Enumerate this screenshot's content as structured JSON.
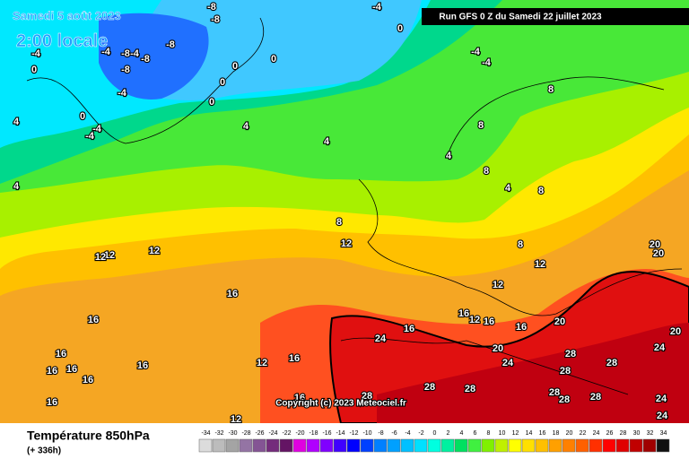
{
  "header": {
    "date": "Samedi 5 août 2023",
    "time": "2:00 locale",
    "run": "Run GFS 0 Z du Samedi 22 juillet 2023"
  },
  "copyright": "Copyright (c) 2023 Meteociel.fr",
  "footer": {
    "title": "Température 850hPa",
    "subtitle": "(+ 336h)"
  },
  "scale": {
    "values": [
      -34,
      -32,
      -30,
      -28,
      -26,
      -24,
      -22,
      -20,
      -18,
      -16,
      -14,
      -12,
      -10,
      -8,
      -6,
      -4,
      -2,
      0,
      2,
      4,
      6,
      8,
      10,
      12,
      14,
      16,
      18,
      20,
      22,
      24,
      26,
      28,
      30,
      32,
      34
    ],
    "colors": [
      "#dcdcdc",
      "#bcbcbc",
      "#a4a4a4",
      "#9474a4",
      "#845494",
      "#742c7c",
      "#641464",
      "#e000e0",
      "#b000ff",
      "#8000ff",
      "#4000ff",
      "#0000ff",
      "#0040ff",
      "#0080ff",
      "#00a0ff",
      "#00c0ff",
      "#00e0ff",
      "#00ffe0",
      "#00f0a0",
      "#00e060",
      "#40f040",
      "#80f000",
      "#c0f000",
      "#ffff00",
      "#ffe000",
      "#ffc000",
      "#ffa000",
      "#ff8000",
      "#ff6000",
      "#ff3000",
      "#ff0000",
      "#e00000",
      "#c00000",
      "#a00000",
      "#101010"
    ]
  },
  "contour_labels": [
    -8,
    -8,
    -4,
    0,
    -8,
    -4,
    -8,
    -4,
    -8,
    -8,
    -4,
    -4,
    0,
    0,
    0,
    0,
    -4,
    -4,
    0,
    0,
    -4,
    -4,
    4,
    4,
    4,
    8,
    4,
    8,
    8,
    4,
    8,
    4,
    8,
    12,
    8,
    12,
    12,
    12,
    12,
    12,
    16,
    20,
    20,
    16,
    16,
    16,
    12,
    16,
    16,
    20,
    24,
    20,
    20,
    24,
    16,
    16,
    16,
    16,
    16,
    12,
    16,
    24,
    28,
    28,
    28,
    16,
    16,
    28,
    28,
    28,
    28,
    28,
    24,
    28,
    24,
    12
  ]
}
